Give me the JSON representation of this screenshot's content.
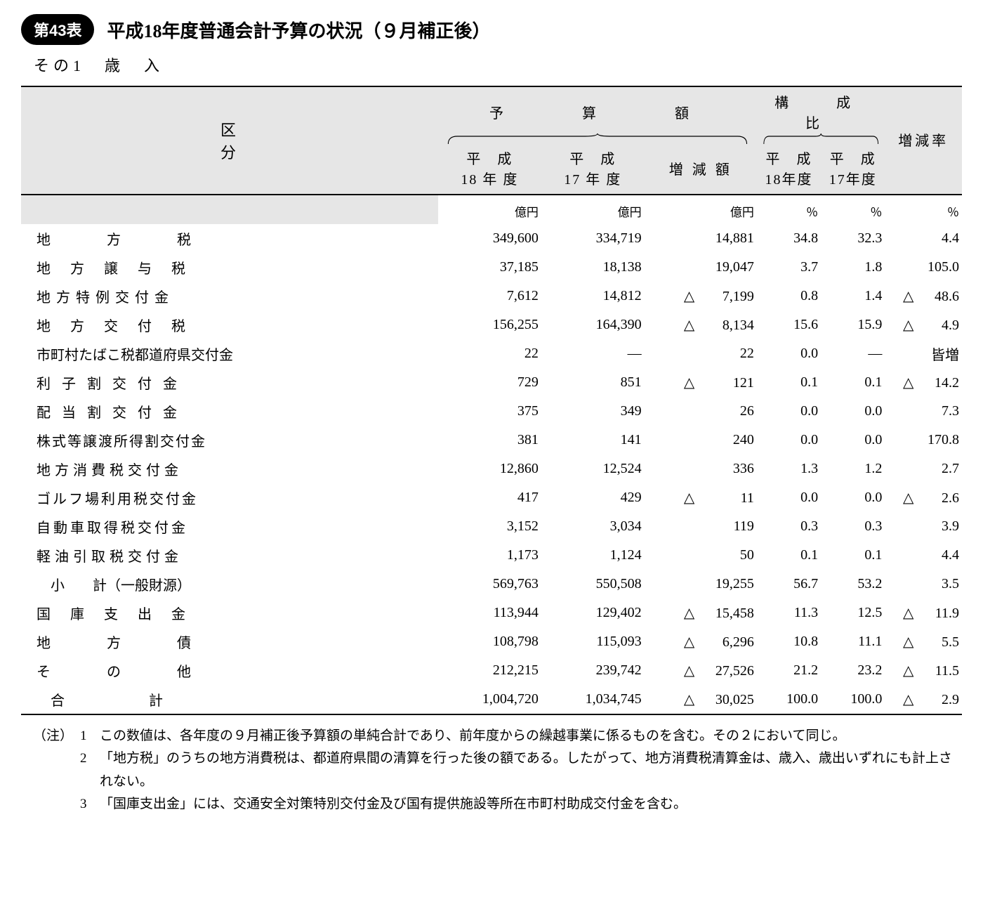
{
  "header": {
    "badge": "第43表",
    "title": "平成18年度普通会計予算の状況（９月補正後）",
    "subtitle": "その1　歳　入"
  },
  "columns": {
    "kubun": "区　　　　分",
    "budget_group": "予　　算　　額",
    "ratio_group": "構　成　比",
    "h18": "平　成",
    "h18y": "18 年 度",
    "h17": "平　成",
    "h17y": "17 年 度",
    "diff": "増 減 額",
    "r18a": "平　成",
    "r18b": "18年度",
    "r17a": "平　成",
    "r17b": "17年度",
    "rate": "増減率"
  },
  "units": {
    "oku": "億円",
    "pct": "％"
  },
  "rows": [
    {
      "cat": "地方税",
      "sp": 80,
      "h18": "349,600",
      "h17": "334,719",
      "dn": "",
      "diff": "14,881",
      "r18": "34.8",
      "r17": "32.3",
      "rn": "",
      "rate": "4.4"
    },
    {
      "cat": "地方譲与税",
      "sp": 28,
      "h18": "37,185",
      "h17": "18,138",
      "dn": "",
      "diff": "19,047",
      "r18": "3.7",
      "r17": "1.8",
      "rn": "",
      "rate": "105.0"
    },
    {
      "cat": "地方特例交付金",
      "sp": 8,
      "h18": "7,612",
      "h17": "14,812",
      "dn": "△",
      "diff": "7,199",
      "r18": "0.8",
      "r17": "1.4",
      "rn": "△",
      "rate": "48.6"
    },
    {
      "cat": "地方交付税",
      "sp": 28,
      "h18": "156,255",
      "h17": "164,390",
      "dn": "△",
      "diff": "8,134",
      "r18": "15.6",
      "r17": "15.9",
      "rn": "△",
      "rate": "4.9"
    },
    {
      "cat": "市町村たばこ税都道府県交付金",
      "sp": 0,
      "h18": "22",
      "h17": "―",
      "dn": "",
      "diff": "22",
      "r18": "0.0",
      "r17": "―",
      "rn": "",
      "rate": "皆増"
    },
    {
      "cat": "利子割交付金",
      "sp": 16,
      "h18": "729",
      "h17": "851",
      "dn": "△",
      "diff": "121",
      "r18": "0.1",
      "r17": "0.1",
      "rn": "△",
      "rate": "14.2"
    },
    {
      "cat": "配当割交付金",
      "sp": 16,
      "h18": "375",
      "h17": "349",
      "dn": "",
      "diff": "26",
      "r18": "0.0",
      "r17": "0.0",
      "rn": "",
      "rate": "7.3"
    },
    {
      "cat": "株式等譲渡所得割交付金",
      "sp": 2,
      "h18": "381",
      "h17": "141",
      "dn": "",
      "diff": "240",
      "r18": "0.0",
      "r17": "0.0",
      "rn": "",
      "rate": "170.8"
    },
    {
      "cat": "地方消費税交付金",
      "sp": 6,
      "h18": "12,860",
      "h17": "12,524",
      "dn": "",
      "diff": "336",
      "r18": "1.3",
      "r17": "1.2",
      "rn": "",
      "rate": "2.7"
    },
    {
      "cat": "ゴルフ場利用税交付金",
      "sp": 3,
      "h18": "417",
      "h17": "429",
      "dn": "△",
      "diff": "11",
      "r18": "0.0",
      "r17": "0.0",
      "rn": "△",
      "rate": "2.6"
    },
    {
      "cat": "自動車取得税交付金",
      "sp": 4,
      "h18": "3,152",
      "h17": "3,034",
      "dn": "",
      "diff": "119",
      "r18": "0.3",
      "r17": "0.3",
      "rn": "",
      "rate": "3.9"
    },
    {
      "cat": "軽油引取税交付金",
      "sp": 6,
      "h18": "1,173",
      "h17": "1,124",
      "dn": "",
      "diff": "50",
      "r18": "0.1",
      "r17": "0.1",
      "rn": "",
      "rate": "4.4"
    },
    {
      "cat": "　小　　計（一般財源）",
      "sp": 0,
      "h18": "569,763",
      "h17": "550,508",
      "dn": "",
      "diff": "19,255",
      "r18": "56.7",
      "r17": "53.2",
      "rn": "",
      "rate": "3.5"
    },
    {
      "cat": "国庫支出金",
      "sp": 28,
      "h18": "113,944",
      "h17": "129,402",
      "dn": "△",
      "diff": "15,458",
      "r18": "11.3",
      "r17": "12.5",
      "rn": "△",
      "rate": "11.9"
    },
    {
      "cat": "地方債",
      "sp": 80,
      "h18": "108,798",
      "h17": "115,093",
      "dn": "△",
      "diff": "6,296",
      "r18": "10.8",
      "r17": "11.1",
      "rn": "△",
      "rate": "5.5"
    },
    {
      "cat": "その他",
      "sp": 80,
      "h18": "212,215",
      "h17": "239,742",
      "dn": "△",
      "diff": "27,526",
      "r18": "21.2",
      "r17": "23.2",
      "rn": "△",
      "rate": "11.5"
    },
    {
      "cat": "　合　　　　　　計",
      "sp": 0,
      "h18": "1,004,720",
      "h17": "1,034,745",
      "dn": "△",
      "diff": "30,025",
      "r18": "100.0",
      "r17": "100.0",
      "rn": "△",
      "rate": "2.9"
    }
  ],
  "notes": {
    "label": "（注）",
    "items": [
      {
        "n": "1",
        "t": "この数値は、各年度の９月補正後予算額の単純合計であり、前年度からの繰越事業に係るものを含む。その２において同じ。"
      },
      {
        "n": "2",
        "t": "「地方税」のうちの地方消費税は、都道府県間の清算を行った後の額である。したがって、地方消費税清算金は、歳入、歳出いずれにも計上されない。"
      },
      {
        "n": "3",
        "t": "「国庫支出金」には、交通安全対策特別交付金及び国有提供施設等所在市町村助成交付金を含む。"
      }
    ]
  }
}
